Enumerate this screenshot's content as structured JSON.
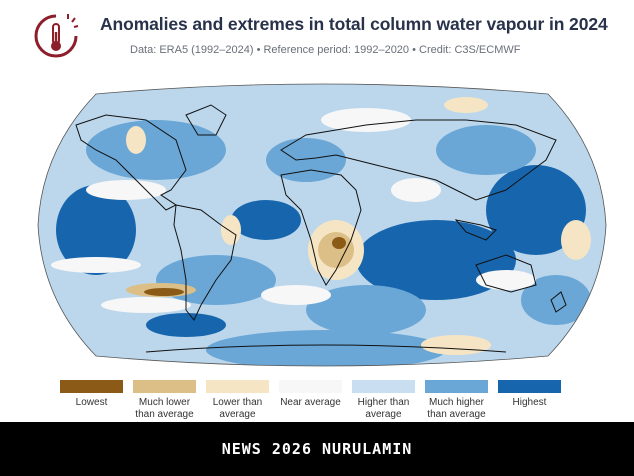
{
  "header": {
    "title": "Anomalies and extremes in total column water vapour in 2024",
    "subtitle": "Data: ERA5 (1992–2024)  •  Reference period: 1992–2020  •  Credit: C3S/ECMWF"
  },
  "logo": {
    "icon": "thermometer-sun-icon",
    "color": "#8c1f2b"
  },
  "map": {
    "projection": "Robinson",
    "ocean_base_color": "#bcd7ec"
  },
  "legend": {
    "items": [
      {
        "label": "Lowest",
        "color": "#8c5a17"
      },
      {
        "label": "Much lower than average",
        "color": "#dcbf86"
      },
      {
        "label": "Lower than average",
        "color": "#f5e5c4"
      },
      {
        "label": "Near average",
        "color": "#f7f7f7"
      },
      {
        "label": "Higher than average",
        "color": "#c9dff1"
      },
      {
        "label": "Much higher than average",
        "color": "#6aa7d6"
      },
      {
        "label": "Highest",
        "color": "#1766ad"
      }
    ]
  },
  "banner": {
    "text": "NEWS 2026 NURULAMIN"
  }
}
